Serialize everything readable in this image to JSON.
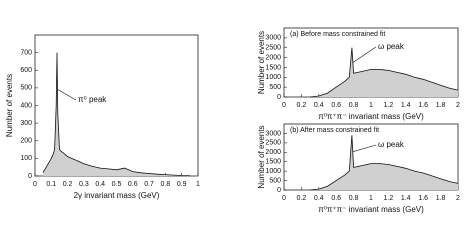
{
  "chart_data": [
    {
      "type": "area",
      "ylabel": "Number of events",
      "xlabel": "2γ invariant mass (GeV)",
      "annotation": "π⁰ peak",
      "x": [
        0.05,
        0.075,
        0.1,
        0.11,
        0.12,
        0.13,
        0.135,
        0.14,
        0.15,
        0.16,
        0.175,
        0.2,
        0.25,
        0.3,
        0.35,
        0.4,
        0.45,
        0.5,
        0.55,
        0.6,
        0.65,
        0.7,
        0.75,
        0.8,
        0.85,
        0.9,
        0.95
      ],
      "values": [
        20,
        60,
        100,
        120,
        150,
        400,
        700,
        350,
        150,
        140,
        130,
        110,
        90,
        70,
        55,
        45,
        40,
        35,
        45,
        25,
        18,
        14,
        10,
        8,
        5,
        3,
        2
      ],
      "color": "#111",
      "fill": "#d0d0d0",
      "xlim": [
        0,
        1
      ],
      "xticks": [
        0,
        0.1,
        0.2,
        0.3,
        0.4,
        0.5,
        0.6,
        0.7,
        0.8,
        0.9,
        1
      ],
      "ylim": [
        0,
        800
      ],
      "yticks": [
        0,
        100,
        200,
        300,
        400,
        500,
        600,
        700
      ]
    },
    {
      "type": "area",
      "title": "(a) Before mass constrained fit",
      "ylabel": "Number of events",
      "xlabel": "π⁰π⁺π⁻ invariant mass (GeV)",
      "annotation": "ω peak",
      "x": [
        0.3,
        0.4,
        0.5,
        0.6,
        0.7,
        0.75,
        0.78,
        0.8,
        0.9,
        1.0,
        1.1,
        1.2,
        1.3,
        1.4,
        1.5,
        1.6,
        1.7,
        1.8,
        1.9,
        2.0
      ],
      "values": [
        0,
        50,
        200,
        500,
        800,
        1000,
        2500,
        1200,
        1300,
        1400,
        1400,
        1350,
        1250,
        1150,
        1000,
        900,
        750,
        600,
        450,
        350
      ],
      "color": "#111",
      "fill": "#d0d0d0",
      "xlim": [
        0,
        2
      ],
      "xticks": [
        0,
        0.2,
        0.4,
        0.6,
        0.8,
        1,
        1.2,
        1.4,
        1.6,
        1.8,
        2
      ],
      "ylim": [
        0,
        3500
      ],
      "yticks": [
        0,
        500,
        1000,
        1500,
        2000,
        2500,
        3000
      ]
    },
    {
      "type": "area",
      "title": "(b) After mass constrained fit",
      "ylabel": "Number of events",
      "xlabel": "π⁰π⁺π⁻ invariant mass (GeV)",
      "annotation": "ω peak",
      "x": [
        0.3,
        0.4,
        0.5,
        0.6,
        0.7,
        0.75,
        0.78,
        0.8,
        0.9,
        1.0,
        1.1,
        1.2,
        1.3,
        1.4,
        1.5,
        1.6,
        1.7,
        1.8,
        1.9,
        2.0
      ],
      "values": [
        0,
        50,
        200,
        500,
        800,
        1000,
        2900,
        1200,
        1300,
        1400,
        1400,
        1350,
        1250,
        1150,
        1000,
        900,
        750,
        600,
        450,
        350
      ],
      "color": "#111",
      "fill": "#d0d0d0",
      "xlim": [
        0,
        2
      ],
      "xticks": [
        0,
        0.2,
        0.4,
        0.6,
        0.8,
        1,
        1.2,
        1.4,
        1.6,
        1.8,
        2
      ],
      "ylim": [
        0,
        3500
      ],
      "yticks": [
        0,
        500,
        1000,
        1500,
        2000,
        2500,
        3000
      ]
    }
  ]
}
